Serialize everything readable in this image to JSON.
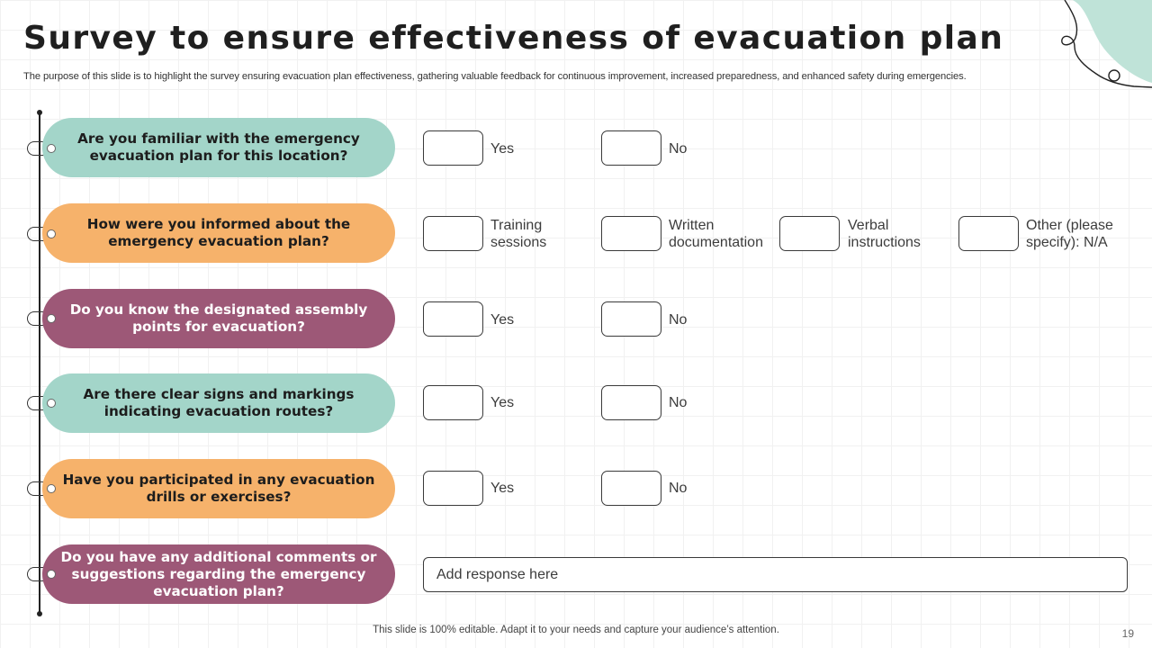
{
  "title": "Survey to ensure effectiveness of evacuation plan",
  "subtitle": "The purpose of this slide is to highlight the survey ensuring evacuation plan effectiveness, gathering valuable feedback for continuous improvement, increased preparedness, and enhanced safety during emergencies.",
  "colors": {
    "teal": "#a3d5c9",
    "orange": "#f6b26b",
    "purple": "#9d5877",
    "deco": "#bfe3d8"
  },
  "questions": [
    {
      "text": "Are you familiar with the emergency evacuation plan for this location?",
      "options": [
        "Yes",
        "No"
      ]
    },
    {
      "text": "How were you informed about the emergency evacuation plan?",
      "options": [
        "Training sessions",
        "Written documentation",
        "Verbal instructions",
        "Other (please specify): N/A"
      ]
    },
    {
      "text": "Do you know the designated assembly points for evacuation?",
      "options": [
        "Yes",
        "No"
      ]
    },
    {
      "text": "Are there clear signs and markings indicating evacuation routes?",
      "options": [
        "Yes",
        "No"
      ]
    },
    {
      "text": "Have you participated in any evacuation drills or exercises?",
      "options": [
        "Yes",
        "No"
      ]
    },
    {
      "text": "Do you have any additional comments or suggestions regarding the emergency evacuation plan?",
      "response_placeholder": "Add response here"
    }
  ],
  "footer": "This slide is 100% editable. Adapt it to your needs and capture your audience’s attention.",
  "page_number": "19"
}
